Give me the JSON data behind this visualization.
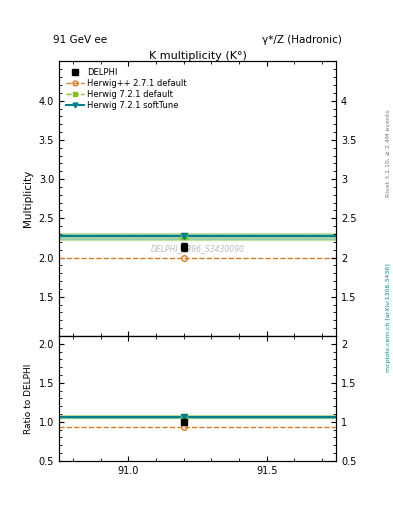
{
  "title": "K multiplicity (K°)",
  "top_left_label": "91 GeV ee",
  "top_right_label": "γ*/Z (Hadronic)",
  "right_label_top": "Rivet 3.1.10, ≥ 2.4M events",
  "right_label_bot": "mcplots.cern.ch [arXiv:1306.3436]",
  "watermark": "DELPHI_1996_S3430090",
  "ylabel_main": "Multiplicity",
  "ylabel_ratio": "Ratio to DELPHI",
  "xlim": [
    90.75,
    91.75
  ],
  "ylim_main": [
    1.0,
    4.5
  ],
  "ylim_ratio": [
    0.5,
    2.1
  ],
  "xticks": [
    91.0,
    91.5
  ],
  "yticks_main": [
    1.5,
    2.0,
    2.5,
    3.0,
    3.5,
    4.0
  ],
  "yticks_ratio": [
    0.5,
    1.0,
    1.5,
    2.0
  ],
  "data_x": 91.2,
  "data_y": 2.13,
  "data_yerr": 0.05,
  "x_range": [
    90.75,
    91.75
  ],
  "herwig_pp_y": 2.0,
  "herwig_721d_y": 2.27,
  "herwig_721s_y": 2.27,
  "herwig_pp_color": "#e07820",
  "herwig_721d_color": "#80c020",
  "herwig_721s_color": "#008090",
  "data_color": "#000000",
  "band_721d_alpha": 0.3,
  "band_721s_alpha": 0.2,
  "legend_entries": [
    "DELPHI",
    "Herwig++ 2.7.1 default",
    "Herwig 7.2.1 default",
    "Herwig 7.2.1 softTune"
  ]
}
